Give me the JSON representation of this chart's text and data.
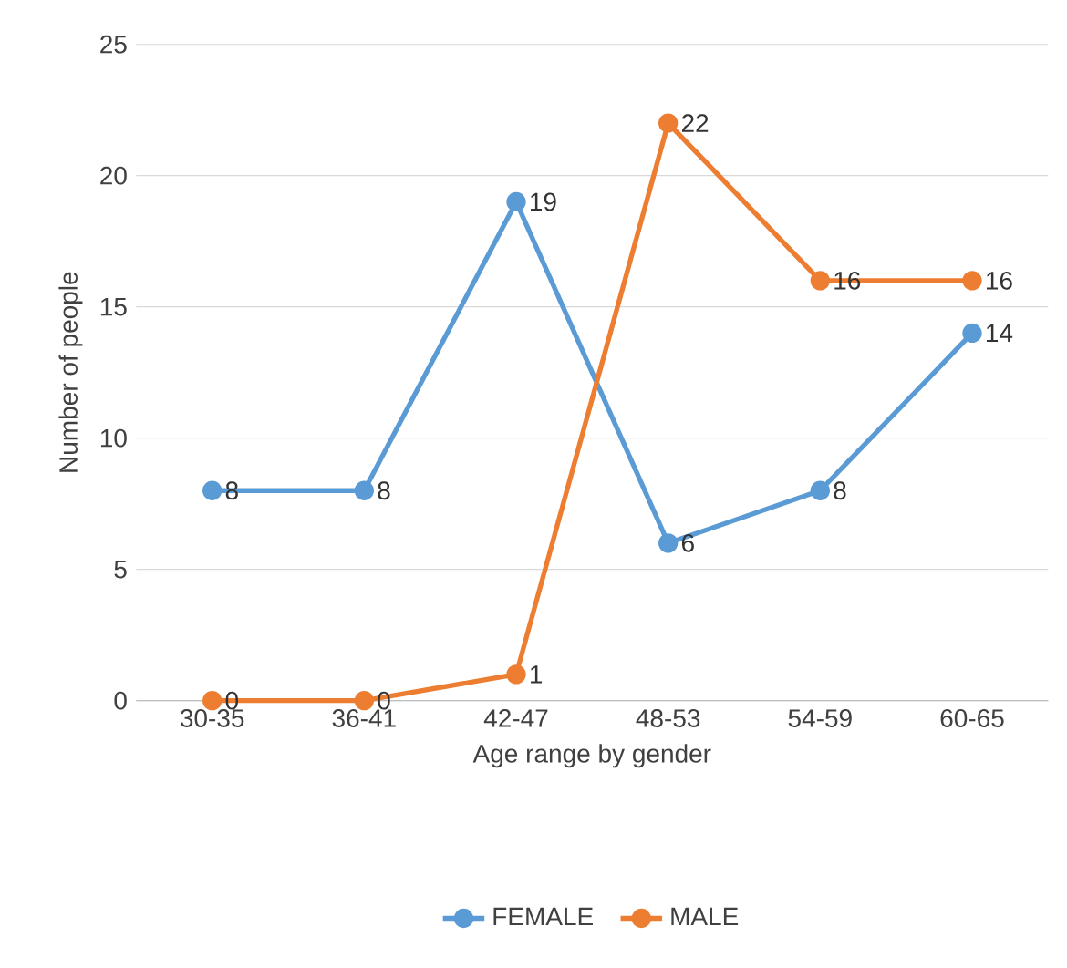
{
  "chart_data": {
    "type": "line",
    "xlabel": "Age range by gender",
    "ylabel": "Number of people",
    "categories": [
      "30-35",
      "36-41",
      "42-47",
      "48-53",
      "54-59",
      "60-65"
    ],
    "series": [
      {
        "name": "FEMALE",
        "color": "#5b9bd5",
        "values": [
          8,
          8,
          19,
          6,
          8,
          14
        ]
      },
      {
        "name": "MALE",
        "color": "#ed7d31",
        "values": [
          0,
          0,
          1,
          22,
          16,
          16
        ]
      }
    ],
    "ylim": [
      0,
      25
    ],
    "yticks": [
      0,
      5,
      10,
      15,
      20,
      25
    ],
    "grid": "y",
    "legend": "bottom",
    "marker": "circle",
    "line_style": "solid",
    "data_labels": true
  }
}
